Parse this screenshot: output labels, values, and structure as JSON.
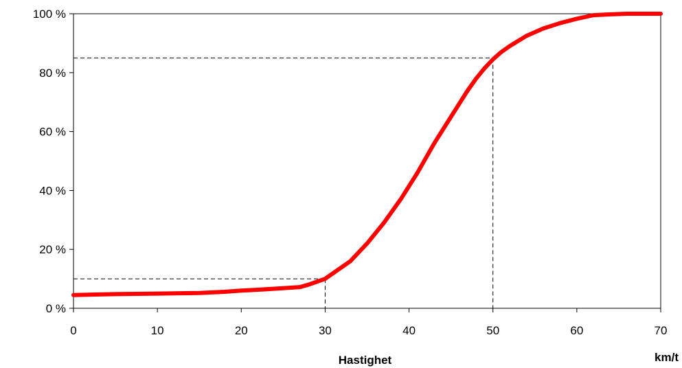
{
  "chart_data": {
    "type": "line",
    "title": "",
    "xlabel": "Hastighet",
    "xunit": "km/t",
    "ylabel": "",
    "xlim": [
      0,
      70
    ],
    "ylim": [
      0,
      100
    ],
    "xticks": [
      0,
      10,
      20,
      30,
      40,
      50,
      60,
      70
    ],
    "xtick_labels": [
      "0",
      "10",
      "20",
      "30",
      "40",
      "50",
      "60",
      "70"
    ],
    "yticks": [
      0,
      20,
      40,
      60,
      80,
      100
    ],
    "ytick_labels": [
      "0 %",
      "20 %",
      "40 %",
      "60 %",
      "80 %",
      "100 %"
    ],
    "grid": false,
    "legend": "none",
    "line_color": "#ff0000",
    "series": [
      {
        "x": [
          0,
          5,
          10,
          15,
          18,
          20,
          22,
          25,
          27,
          28,
          29,
          30,
          31,
          33,
          35,
          37,
          39,
          41,
          43,
          45,
          47,
          48,
          49,
          50,
          51,
          52,
          54,
          56,
          58,
          60,
          62,
          64,
          66,
          70
        ],
        "y": [
          4.5,
          4.8,
          5.0,
          5.2,
          5.6,
          6.0,
          6.3,
          6.8,
          7.2,
          8.0,
          9.0,
          10.0,
          12.0,
          16.0,
          22.0,
          29.0,
          37.0,
          46.0,
          56.0,
          65.0,
          74.0,
          78.0,
          81.5,
          84.5,
          87.0,
          89.0,
          92.5,
          95.0,
          96.8,
          98.3,
          99.5,
          99.8,
          100.0,
          100.0
        ]
      }
    ],
    "reference_lines": [
      {
        "x": 30,
        "y": 10
      },
      {
        "x": 50,
        "y": 85
      }
    ]
  }
}
